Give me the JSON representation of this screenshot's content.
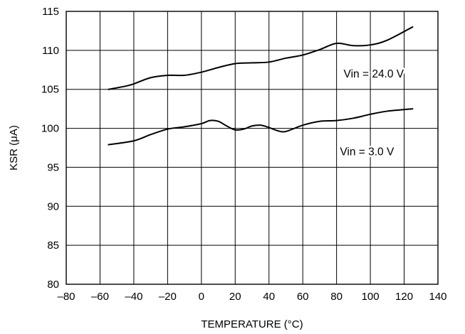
{
  "chart_data": {
    "type": "line",
    "xlabel": "TEMPERATURE (°C)",
    "ylabel": "KSR (μA)",
    "xlim": [
      -80,
      140
    ],
    "ylim": [
      80,
      115
    ],
    "xticks": [
      -80,
      -60,
      -40,
      -20,
      0,
      20,
      40,
      60,
      80,
      100,
      120,
      140
    ],
    "yticks": [
      80,
      85,
      90,
      95,
      100,
      105,
      110,
      115
    ],
    "xtick_labels": [
      "–80",
      "–60",
      "–40",
      "–20",
      "0",
      "20",
      "40",
      "60",
      "80",
      "100",
      "120",
      "140"
    ],
    "ytick_labels": [
      "80",
      "85",
      "90",
      "95",
      "100",
      "105",
      "110",
      "115"
    ],
    "grid": true,
    "line_color": "#000000",
    "series": [
      {
        "x": [
          -55,
          -45,
          -40,
          -30,
          -20,
          -10,
          0,
          10,
          20,
          30,
          40,
          50,
          60,
          70,
          80,
          90,
          100,
          110,
          125
        ],
        "y": [
          105.0,
          105.4,
          105.7,
          106.5,
          106.8,
          106.8,
          107.2,
          107.8,
          108.3,
          108.4,
          108.5,
          109.0,
          109.4,
          110.1,
          110.9,
          110.6,
          110.7,
          111.3,
          113.0
        ]
      },
      {
        "x": [
          -55,
          -40,
          -30,
          -20,
          -10,
          0,
          5,
          10,
          15,
          20,
          25,
          30,
          35,
          40,
          45,
          50,
          60,
          70,
          80,
          90,
          100,
          110,
          125
        ],
        "y": [
          97.9,
          98.4,
          99.2,
          99.9,
          100.2,
          100.6,
          101.0,
          100.9,
          100.3,
          99.8,
          99.9,
          100.3,
          100.4,
          100.1,
          99.7,
          99.6,
          100.4,
          100.9,
          101.0,
          101.3,
          101.8,
          102.2,
          102.5
        ]
      }
    ],
    "annotations": [
      {
        "text": "Vin = 24.0 V",
        "x": 102,
        "y": 107
      },
      {
        "text": "Vin = 3.0 V",
        "x": 98,
        "y": 97
      }
    ]
  }
}
